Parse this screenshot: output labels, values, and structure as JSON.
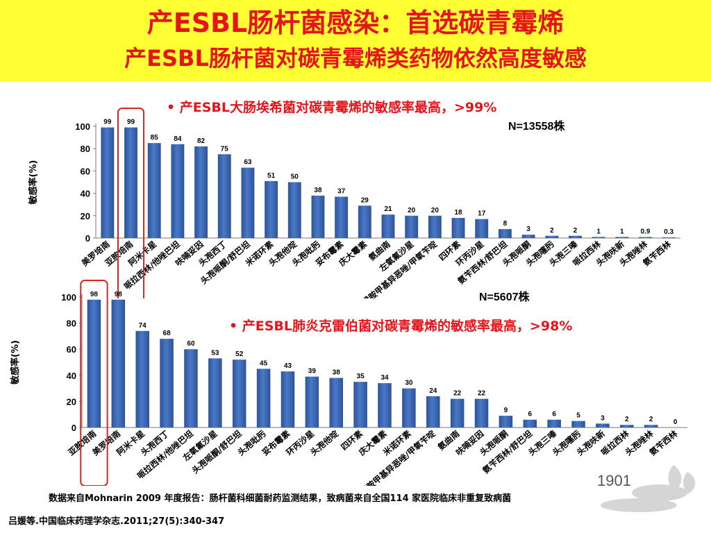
{
  "header": {
    "title_line1": "产ESBL肠杆菌感染：首选碳青霉烯",
    "title_line2": "产ESBL肠杆菌对碳青霉烯类药物依然高度敏感"
  },
  "colors": {
    "bar": "#4a78c8",
    "bar_dark": "#2c5496",
    "highlight": "#d9261c",
    "title": "#e5141a",
    "header_bg": "#ffff33"
  },
  "chart_data": [
    {
      "type": "bar",
      "bullet": "• 产ESBL大肠埃希菌对碳青霉烯的敏感率最高，>99%",
      "n_label": "N=13558株",
      "ylabel": "敏感率(%)",
      "ylim": [
        0,
        100
      ],
      "yticks": [
        0,
        20,
        40,
        60,
        80,
        100
      ],
      "highlight_index": 1,
      "categories": [
        "美罗培南",
        "亚胺培南",
        "阿米卡星",
        "哌拉西林/他唑巴坦",
        "呋喃妥因",
        "头孢西丁",
        "头孢哌酮/舒巴坦",
        "米诺环素",
        "头孢他啶",
        "头孢吡肟",
        "妥布霉素",
        "庆大霉素",
        "氨曲南",
        "左氧氟沙星",
        "磺胺甲基异恶唑/甲氧苄啶",
        "四环素",
        "环丙沙星",
        "氨苄西林/舒巴坦",
        "头孢哌酮",
        "头孢噻肟",
        "头孢三嗪",
        "哌拉西林",
        "头孢呋新",
        "头孢唑林",
        "氨苄西林"
      ],
      "values": [
        99,
        99,
        85,
        84,
        82,
        75,
        63,
        51,
        50,
        38,
        37,
        29,
        21,
        20,
        20,
        18,
        17,
        8,
        3,
        2,
        2,
        1,
        1,
        0.9,
        0.3
      ]
    },
    {
      "type": "bar",
      "bullet": "• 产ESBL肺炎克雷伯菌对碳青霉烯的敏感率最高，>98%",
      "n_label": "N=5607株",
      "ylabel": "敏感率(%)",
      "ylim": [
        0,
        100
      ],
      "yticks": [
        0,
        20,
        40,
        60,
        80,
        100
      ],
      "highlight_index": 0,
      "categories": [
        "亚胺培南",
        "美罗培南",
        "阿米卡星",
        "头孢西丁",
        "哌拉西林/他唑巴坦",
        "左氧氟沙星",
        "头孢哌酮/舒巴坦",
        "头孢吡肟",
        "妥布霉素",
        "环丙沙星",
        "头孢他啶",
        "四环素",
        "庆大霉素",
        "米诺环素",
        "磺胺甲基异恶唑/甲氧苄啶",
        "氨曲南",
        "呋喃妥因",
        "头孢哌酮",
        "氨苄西林/舒巴坦",
        "头孢三嗪",
        "头孢噻肟",
        "头孢呋新",
        "哌拉西林",
        "头孢唑林",
        "氨苄西林"
      ],
      "values": [
        98,
        98,
        74,
        68,
        60,
        53,
        52,
        45,
        43,
        39,
        38,
        35,
        34,
        30,
        24,
        22,
        22,
        9,
        6,
        6,
        5,
        3,
        2,
        2,
        0
      ]
    }
  ],
  "footer": {
    "source": "数据来自Mohnarin 2009 年度报告：肠杆菌科细菌耐药监测结果，致病菌来自全国114 家医院临床非重复致病菌",
    "reference": "吕媛等.中国临床药理学杂志.2011;27(5):340-347"
  },
  "logo": {
    "text": "1901"
  }
}
